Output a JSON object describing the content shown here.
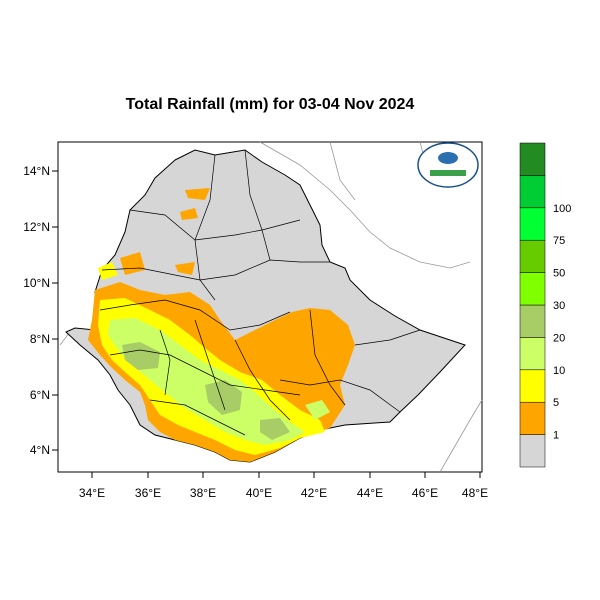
{
  "title": "Total Rainfall (mm) for 03-04 Nov 2024",
  "lon_labels": [
    "34°E",
    "36°E",
    "38°E",
    "40°E",
    "42°E",
    "44°E",
    "46°E",
    "48°E"
  ],
  "lat_labels": [
    "14°N",
    "12°N",
    "10°N",
    "8°N",
    "6°N",
    "4°N"
  ],
  "legend": {
    "classes": [
      {
        "color": "#d6d6d6"
      },
      {
        "color": "#ffa500"
      },
      {
        "color": "#ffff00"
      },
      {
        "color": "#ccff66"
      },
      {
        "color": "#a8cc66"
      },
      {
        "color": "#80ff00"
      },
      {
        "color": "#66cc00"
      },
      {
        "color": "#00ff33"
      },
      {
        "color": "#00cc33"
      },
      {
        "color": "#228b22"
      }
    ],
    "labels": [
      "1",
      "5",
      "10",
      "20",
      "30",
      "50",
      "75",
      "100"
    ]
  },
  "colors": {
    "land_background": "#d6d6d6",
    "boundary": "#000000",
    "neighbor_boundary": "#999999"
  }
}
